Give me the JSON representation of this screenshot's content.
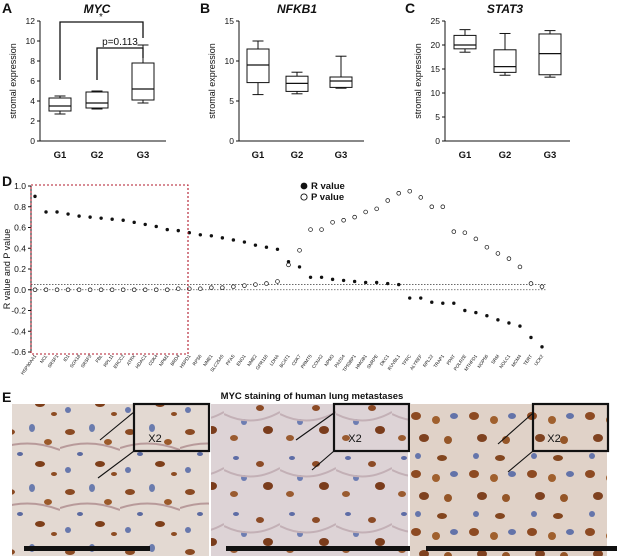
{
  "panels": {
    "A": {
      "letter": "A",
      "gene": "MYC"
    },
    "B": {
      "letter": "B",
      "gene": "NFKB1"
    },
    "C": {
      "letter": "C",
      "gene": "STAT3"
    },
    "D": {
      "letter": "D"
    },
    "E": {
      "letter": "E",
      "title": "MYC staining of human lung metastases",
      "zoom_label": "X2"
    }
  },
  "significance": {
    "star": "*",
    "p_label": "p=0.113"
  },
  "chart_data": [
    {
      "panel": "A",
      "type": "box",
      "title": "MYC",
      "ylabel": "stromal expression",
      "categories": [
        "G1",
        "G2",
        "G3"
      ],
      "ylim": [
        0,
        12
      ],
      "yticks": [
        0,
        2,
        4,
        6,
        8,
        10,
        12
      ],
      "boxes": [
        {
          "min": 2.7,
          "q1": 3.0,
          "median": 3.5,
          "q3": 4.3,
          "max": 4.5
        },
        {
          "min": 3.2,
          "q1": 3.3,
          "median": 3.8,
          "q3": 4.9,
          "max": 5.0
        },
        {
          "min": 3.8,
          "q1": 4.1,
          "median": 5.2,
          "q3": 7.8,
          "max": 9.6
        }
      ]
    },
    {
      "panel": "B",
      "type": "box",
      "title": "NFKB1",
      "ylabel": "stromal expression",
      "categories": [
        "G1",
        "G2",
        "G3"
      ],
      "ylim": [
        0,
        15
      ],
      "yticks": [
        0,
        5,
        10,
        15
      ],
      "boxes": [
        {
          "min": 5.8,
          "q1": 7.3,
          "median": 9.5,
          "q3": 11.5,
          "max": 12.5
        },
        {
          "min": 5.9,
          "q1": 6.2,
          "median": 7.2,
          "q3": 8.1,
          "max": 8.6
        },
        {
          "min": 6.6,
          "q1": 6.7,
          "median": 7.5,
          "q3": 8.0,
          "max": 10.6
        }
      ]
    },
    {
      "panel": "C",
      "type": "box",
      "title": "STAT3",
      "ylabel": "stromal expression",
      "categories": [
        "G1",
        "G2",
        "G3"
      ],
      "ylim": [
        0,
        25
      ],
      "yticks": [
        0,
        5,
        10,
        15,
        20,
        25
      ],
      "boxes": [
        {
          "min": 18.5,
          "q1": 19.2,
          "median": 20.0,
          "q3": 22.0,
          "max": 23.2
        },
        {
          "min": 13.7,
          "q1": 14.3,
          "median": 15.5,
          "q3": 19.0,
          "max": 22.4
        },
        {
          "min": 13.3,
          "q1": 13.8,
          "median": 18.2,
          "q3": 22.3,
          "max": 23.0
        }
      ]
    },
    {
      "panel": "D",
      "type": "scatter",
      "ylabel": "R value and P value",
      "ylim": [
        -0.6,
        1.0
      ],
      "yticks": [
        -0.6,
        -0.4,
        -0.2,
        0.0,
        0.2,
        0.4,
        0.6,
        0.8,
        1.0
      ],
      "reference_lines": [
        0.05,
        0.0
      ],
      "genes": [
        "HSP90AA1",
        "NCL",
        "SRSF1",
        "ID1",
        "SOX18",
        "SRSF3",
        "FBL",
        "RPL11",
        "ERCC2",
        "ATRX",
        "HDAC1",
        "CDK4",
        "NPM1",
        "BRD4",
        "HSPD1",
        "RPS6",
        "NME1",
        "SLC25A5",
        "PFAS",
        "ENO1",
        "NME2",
        "GPR116",
        "LDHA",
        "BCAT1",
        "CDK7",
        "PRMT5",
        "CCNA2",
        "NPM3",
        "PA2G4",
        "TP53BP1",
        "HMGB1",
        "SNRPE",
        "DKC1",
        "RUVBL1",
        "TFRC",
        "ALYREF",
        "RPL22",
        "TRAP1",
        "PPAT",
        "POLR2E",
        "MTHFD1",
        "NOP56",
        "SRM",
        "NOLC1",
        "MCM4",
        "TERT",
        "UCK2"
      ],
      "series": [
        {
          "name": "R value",
          "values": [
            0.9,
            0.75,
            0.75,
            0.73,
            0.71,
            0.7,
            0.69,
            0.68,
            0.67,
            0.65,
            0.63,
            0.61,
            0.58,
            0.57,
            0.55,
            0.53,
            0.52,
            0.5,
            0.48,
            0.46,
            0.43,
            0.41,
            0.39,
            0.27,
            0.22,
            0.12,
            0.12,
            0.1,
            0.09,
            0.08,
            0.07,
            0.07,
            0.06,
            0.05,
            -0.08,
            -0.08,
            -0.12,
            -0.13,
            -0.13,
            -0.2,
            -0.22,
            -0.25,
            -0.29,
            -0.32,
            -0.35,
            -0.46,
            -0.55
          ]
        },
        {
          "name": "P value",
          "values": [
            0.0,
            0.0,
            0.0,
            0.0,
            0.0,
            0.0,
            0.0,
            0.0,
            0.0,
            0.0,
            0.0,
            0.0,
            0.0,
            0.01,
            0.01,
            0.01,
            0.02,
            0.02,
            0.03,
            0.04,
            0.05,
            0.06,
            0.08,
            0.24,
            0.38,
            0.58,
            0.58,
            0.65,
            0.67,
            0.7,
            0.75,
            0.78,
            0.86,
            0.93,
            0.95,
            0.89,
            0.8,
            0.8,
            0.56,
            0.55,
            0.49,
            0.41,
            0.35,
            0.3,
            0.22,
            0.06,
            0.03
          ]
        }
      ],
      "legend": "top-right"
    }
  ]
}
